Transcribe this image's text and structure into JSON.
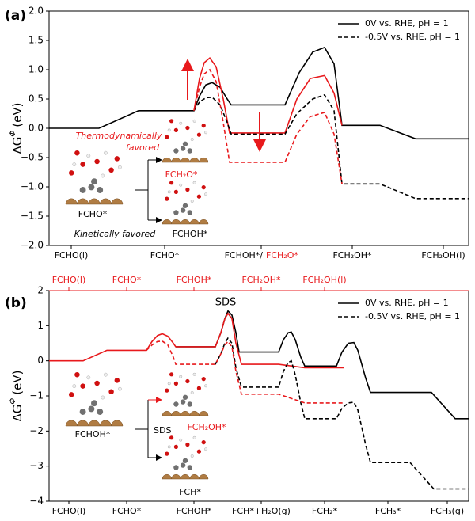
{
  "chart_data": [
    {
      "type": "line",
      "panel_label": "(a)",
      "ylabel": {
        "main": "ΔG",
        "sup": "Φ",
        "unit": "(eV)"
      },
      "xlim": [
        0,
        530
      ],
      "ylim": [
        -2,
        2
      ],
      "yticks": [
        {
          "value": -2,
          "label": "−2.0"
        },
        {
          "value": -1.5,
          "label": "−1.5"
        },
        {
          "value": -1,
          "label": "−1.0"
        },
        {
          "value": -0.5,
          "label": "−0.5"
        },
        {
          "value": 0,
          "label": "0.0"
        },
        0.5,
        {
          "value": 1,
          "label": "1.0"
        },
        1.5,
        {
          "value": 2,
          "label": "2.0"
        }
      ],
      "xticks": [
        {
          "value": 28,
          "label": "FCHO(l)"
        },
        {
          "value": 146,
          "label": "FCHO*"
        },
        {
          "value": 268,
          "label": "FCHOH*/",
          "alt_label": "FCH₂O*",
          "alt_color": "#e8191c"
        },
        {
          "value": 383,
          "label": "FCH₂OH*"
        },
        {
          "value": 498,
          "label": "FCH₂OH(l)"
        }
      ],
      "legend": "upper right",
      "series": [
        {
          "name": "0V vs. RHE, pH = 1",
          "dash": false,
          "branches": [
            {
              "color": "#000000",
              "x": [
                0,
                63,
                113,
                183,
                190,
                198,
                206,
                216,
                225,
                230,
                298,
                316,
                333,
                348,
                360,
                370,
                418,
                463,
                530
              ],
              "values": [
                0,
                0,
                0.3,
                0.3,
                0.55,
                0.74,
                0.78,
                0.7,
                0.5,
                0.4,
                0.4,
                0.95,
                1.3,
                1.38,
                1.1,
                0.05,
                0.05,
                -0.18,
                -0.18
              ]
            },
            {
              "color": "#e8191c",
              "x": [
                183,
                190,
                196,
                203,
                211,
                220,
                228,
                298,
                313,
                330,
                348,
                360,
                370
              ],
              "values": [
                0.3,
                0.85,
                1.12,
                1.2,
                1.05,
                0.5,
                -0.08,
                -0.08,
                0.5,
                0.85,
                0.9,
                0.6,
                0.05
              ]
            }
          ]
        },
        {
          "name": "-0.5V vs. RHE, pH = 1",
          "dash": true,
          "branches": [
            {
              "color": "#000000",
              "x": [
                183,
                190,
                198,
                206,
                216,
                225,
                230,
                298,
                313,
                333,
                348,
                360,
                370,
                418,
                463,
                530
              ],
              "values": [
                0.3,
                0.45,
                0.52,
                0.53,
                0.4,
                0.1,
                -0.1,
                -0.1,
                0.25,
                0.5,
                0.57,
                0.3,
                -0.95,
                -0.95,
                -1.2,
                -1.2
              ]
            },
            {
              "color": "#e8191c",
              "x": [
                183,
                190,
                196,
                203,
                211,
                220,
                228,
                298,
                313,
                330,
                348,
                360,
                370
              ],
              "values": [
                0.3,
                0.7,
                0.93,
                1.0,
                0.8,
                0.1,
                -0.58,
                -0.58,
                -0.1,
                0.2,
                0.27,
                -0.1,
                -0.95
              ]
            }
          ]
        }
      ],
      "annotations": {
        "thermo": [
          "Thermodynamically",
          "favored"
        ],
        "kinetic": "Kinetically favored",
        "species": [
          "FCHO*",
          "FCH₂O*",
          "FCHOH*"
        ]
      }
    },
    {
      "type": "line",
      "panel_label": "(b)",
      "ylabel": {
        "main": "ΔG",
        "sup": "Φ",
        "unit": "(eV)"
      },
      "xlim": [
        0,
        530
      ],
      "ylim": [
        -4,
        2
      ],
      "yticks": [
        {
          "value": -4,
          "label": "−4"
        },
        {
          "value": -3,
          "label": "−3"
        },
        {
          "value": -2,
          "label": "−2"
        },
        {
          "value": -1,
          "label": "−1"
        },
        0,
        1,
        2
      ],
      "xticks": [
        {
          "value": 25,
          "label": "FCHO(l)"
        },
        {
          "value": 98,
          "label": "FCHO*"
        },
        {
          "value": 183,
          "label": "FCHOH*"
        },
        {
          "value": 268,
          "label": "FCH*+H₂O(g)"
        },
        {
          "value": 348,
          "label": "FCH₂*"
        },
        {
          "value": 428,
          "label": "FCH₃*"
        },
        {
          "value": 503,
          "label": "FCH₃(g)"
        }
      ],
      "x2ticks": [
        {
          "value": 25,
          "label": "FCHO(l)"
        },
        {
          "value": 98,
          "label": "FCHO*"
        },
        {
          "value": 183,
          "label": "FCHOH*"
        },
        {
          "value": 268,
          "label": "FCH₂OH*"
        },
        {
          "value": 348,
          "label": "FCH₂OH(l)"
        }
      ],
      "x2color": "#e8191c",
      "legend": "upper right",
      "series": [
        {
          "name": "0V vs. RHE, pH = 1",
          "dash": false,
          "branches": [
            {
              "color": "#000000",
              "x": [
                160,
                210,
                217,
                222,
                226,
                231,
                236,
                240,
                290,
                296,
                302,
                306,
                311,
                318,
                323,
                363,
                370,
                378,
                385,
                390,
                400,
                406,
                483,
                513,
                530
              ],
              "values": [
                0.4,
                0.4,
                0.8,
                1.2,
                1.42,
                1.3,
                0.8,
                0.25,
                0.25,
                0.6,
                0.8,
                0.82,
                0.6,
                0.1,
                -0.15,
                -0.15,
                0.25,
                0.5,
                0.52,
                0.3,
                -0.5,
                -0.9,
                -0.9,
                -1.65,
                -1.65
              ]
            },
            {
              "color": "#e8191c",
              "x": [
                0,
                43,
                73,
                123,
                130,
                137,
                143,
                150,
                157,
                160,
                210,
                217,
                222,
                226,
                231,
                236,
                243,
                290,
                323,
                373
              ],
              "values": [
                0,
                0,
                0.3,
                0.3,
                0.55,
                0.72,
                0.77,
                0.7,
                0.5,
                0.4,
                0.4,
                0.8,
                1.2,
                1.35,
                1.2,
                0.5,
                -0.1,
                -0.1,
                -0.2,
                -0.2
              ]
            }
          ]
        },
        {
          "name": "-0.5V vs. RHE, pH = 1",
          "dash": true,
          "branches": [
            {
              "color": "#000000",
              "x": [
                210,
                217,
                222,
                226,
                231,
                236,
                243,
                290,
                296,
                302,
                306,
                311,
                318,
                323,
                363,
                370,
                378,
                385,
                390,
                400,
                406,
                456,
                486,
                530
              ],
              "values": [
                -0.1,
                0.2,
                0.5,
                0.65,
                0.5,
                -0.2,
                -0.75,
                -0.75,
                -0.3,
                -0.05,
                0,
                -0.4,
                -1.2,
                -1.65,
                -1.65,
                -1.35,
                -1.2,
                -1.18,
                -1.4,
                -2.4,
                -2.9,
                -2.9,
                -3.65,
                -3.65
              ]
            },
            {
              "color": "#e8191c",
              "x": [
                123,
                130,
                137,
                143,
                150,
                157,
                160,
                210,
                217,
                222,
                226,
                231,
                236,
                243,
                290,
                323,
                373
              ],
              "values": [
                0.3,
                0.45,
                0.55,
                0.56,
                0.45,
                0.1,
                -0.1,
                -0.1,
                0.2,
                0.45,
                0.55,
                0.4,
                -0.3,
                -0.95,
                -0.95,
                -1.2,
                -1.2
              ]
            }
          ]
        }
      ],
      "annotations": {
        "sds_top": "SDS",
        "sds_inset": "SDS",
        "species": [
          "FCHOH*",
          "FCH₂OH*",
          "FCH*"
        ]
      }
    }
  ]
}
